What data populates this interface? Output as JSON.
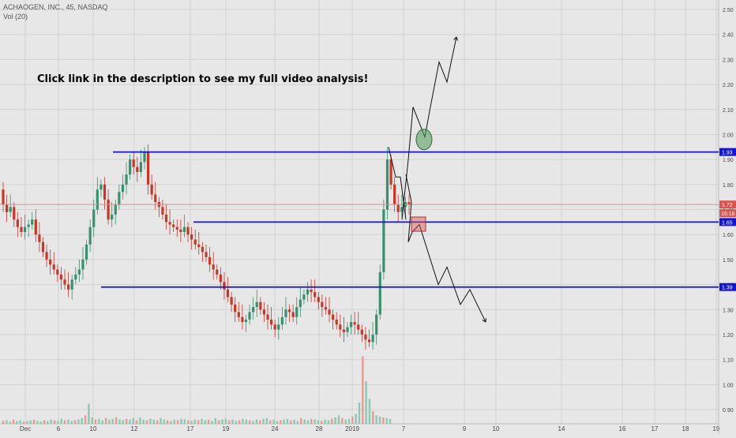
{
  "header": {
    "title": "ACHAOGEN, INC., 45, NASDAQ",
    "indicator": "Vol (20)"
  },
  "annotation": "Click link in the description to see my full video analysis!",
  "colors": {
    "background": "#e7e7e7",
    "grid": "#d2d2d2",
    "up": "#3a8f6e",
    "down": "#c0392b",
    "level_line": "#1414d2",
    "price_line": "#e08a8a",
    "circle": "#4f9a5a",
    "box": "#d9534f"
  },
  "chart_data": {
    "type": "candlestick",
    "title": "ACHAOGEN, INC., 45, NASDAQ",
    "ylim": [
      0.87,
      2.54
    ],
    "y_ticks": [
      "2.50",
      "2.40",
      "2.30",
      "2.20",
      "2.10",
      "2.00",
      "1.90",
      "1.80",
      "1.70",
      "1.60",
      "1.50",
      "1.40",
      "1.30",
      "1.20",
      "1.10",
      "1.00",
      "0.90"
    ],
    "x_ticks": [
      "Dec",
      "6",
      "10",
      "12",
      "17",
      "19",
      "24",
      "28",
      "2019",
      "7",
      "9",
      "10",
      "14",
      "16",
      "17",
      "18",
      "19"
    ],
    "levels": [
      {
        "label": "1.93",
        "value": 1.93
      },
      {
        "label": "1.65",
        "value": 1.65
      },
      {
        "label": "1.39",
        "value": 1.39
      }
    ],
    "last_price": {
      "label": "1.72",
      "value": 1.72,
      "countdown": "16:18"
    },
    "price_path": [
      [
        1.78,
        1.72,
        1.69,
        1.71,
        1.66,
        1.63,
        1.61,
        1.63,
        1.64,
        1.66,
        1.6,
        1.57,
        1.53,
        1.5,
        1.48,
        1.46,
        1.44,
        1.42,
        1.4,
        1.38,
        1.42,
        1.44,
        1.46,
        1.5,
        1.56,
        1.63,
        1.7,
        1.78,
        1.8,
        1.74,
        1.66,
        1.68,
        1.72,
        1.77,
        1.8,
        1.84,
        1.9,
        1.87,
        1.85,
        1.89,
        1.93,
        1.8,
        1.76,
        1.73,
        1.71,
        1.68,
        1.65,
        1.64,
        1.63,
        1.62,
        1.61,
        1.63,
        1.6,
        1.58,
        1.56,
        1.55,
        1.53,
        1.51,
        1.48,
        1.46,
        1.44,
        1.41,
        1.38,
        1.35,
        1.32,
        1.29,
        1.27,
        1.25,
        1.26,
        1.29,
        1.31,
        1.33,
        1.3,
        1.28,
        1.26,
        1.24,
        1.22,
        1.24,
        1.27,
        1.3,
        1.29,
        1.27,
        1.31,
        1.34,
        1.36,
        1.38,
        1.37,
        1.35,
        1.33,
        1.31,
        1.3,
        1.28,
        1.26,
        1.24,
        1.22,
        1.21,
        1.23,
        1.25,
        1.24,
        1.22,
        1.2,
        1.18,
        1.17,
        1.2,
        1.28,
        1.45,
        1.7,
        1.9,
        1.8,
        1.72,
        1.69,
        1.71,
        1.73,
        1.72
      ]
    ],
    "projection_up": [
      [
        1.66,
        1.9,
        2.11,
        1.99,
        2.11,
        2.29,
        2.21,
        2.39
      ]
    ],
    "projection_down": [
      [
        1.84,
        1.73,
        1.57,
        1.61,
        1.64,
        1.4,
        1.47,
        1.32,
        1.38,
        1.25
      ]
    ],
    "volume": [
      4,
      5,
      3,
      6,
      4,
      5,
      3,
      4,
      5,
      6,
      4,
      3,
      5,
      4,
      6,
      5,
      4,
      7,
      5,
      6,
      4,
      5,
      6,
      8,
      12,
      28,
      9,
      6,
      7,
      5,
      8,
      6,
      7,
      9,
      6,
      5,
      7,
      6,
      8,
      5,
      9,
      6,
      5,
      7,
      6,
      5,
      8,
      6,
      5,
      4,
      6,
      5,
      7,
      6,
      5,
      4,
      6,
      5,
      7,
      5,
      6,
      4,
      8,
      5,
      6,
      7,
      5,
      6,
      4,
      5,
      7,
      6,
      5,
      4,
      6,
      5,
      7,
      8,
      5,
      6,
      4,
      5,
      6,
      7,
      5,
      6,
      4,
      8,
      6,
      5,
      7,
      6,
      5,
      4,
      6,
      5,
      7,
      9,
      12,
      8,
      6,
      7,
      10,
      14,
      30,
      95,
      60,
      35,
      18,
      12,
      10,
      9,
      8,
      7
    ]
  }
}
